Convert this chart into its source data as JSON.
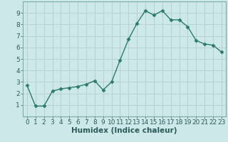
{
  "x": [
    0,
    1,
    2,
    3,
    4,
    5,
    6,
    7,
    8,
    9,
    10,
    11,
    12,
    13,
    14,
    15,
    16,
    17,
    18,
    19,
    20,
    21,
    22,
    23
  ],
  "y": [
    2.7,
    0.9,
    0.9,
    2.2,
    2.4,
    2.5,
    2.6,
    2.8,
    3.1,
    2.3,
    3.0,
    4.9,
    6.7,
    8.1,
    9.2,
    8.8,
    9.2,
    8.4,
    8.4,
    7.8,
    6.6,
    6.3,
    6.2,
    5.6
  ],
  "xlabel": "Humidex (Indice chaleur)",
  "ylim": [
    0,
    10
  ],
  "xlim": [
    -0.5,
    23.5
  ],
  "yticks": [
    1,
    2,
    3,
    4,
    5,
    6,
    7,
    8,
    9
  ],
  "xticks": [
    0,
    1,
    2,
    3,
    4,
    5,
    6,
    7,
    8,
    9,
    10,
    11,
    12,
    13,
    14,
    15,
    16,
    17,
    18,
    19,
    20,
    21,
    22,
    23
  ],
  "xtick_labels": [
    "0",
    "1",
    "2",
    "3",
    "4",
    "5",
    "6",
    "7",
    "8",
    "9",
    "10",
    "11",
    "12",
    "13",
    "14",
    "15",
    "16",
    "17",
    "18",
    "19",
    "20",
    "21",
    "22",
    "23"
  ],
  "line_color": "#2a7b68",
  "marker": "D",
  "marker_size": 2.5,
  "bg_color": "#cde8e8",
  "grid_color": "#b8d0d0",
  "xlabel_fontsize": 7.5,
  "tick_fontsize": 6.5,
  "linewidth": 1.0
}
